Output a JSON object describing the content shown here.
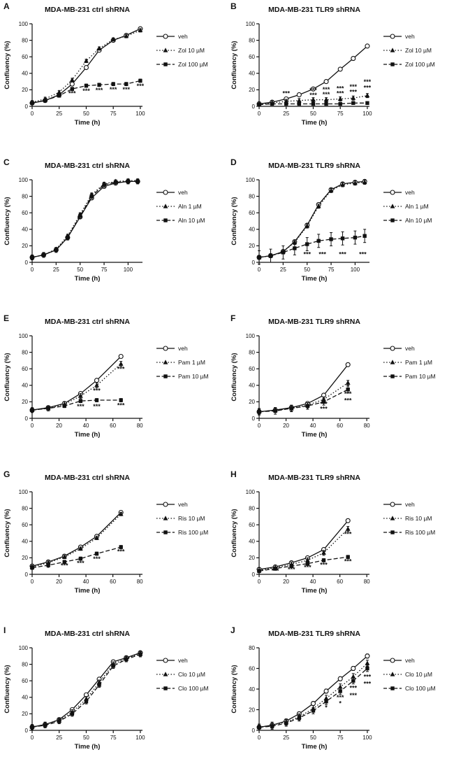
{
  "chart_data": [
    {
      "panel": "A",
      "type": "line",
      "title": "MDA-MB-231 ctrl shRNA",
      "xlabel": "Time (h)",
      "ylabel": "Confluency (%)",
      "xlim": [
        0,
        102
      ],
      "xticks": [
        0,
        25,
        50,
        75,
        100
      ],
      "ylim": [
        0,
        100
      ],
      "yticks": [
        0,
        20,
        40,
        60,
        80,
        100
      ],
      "grid": false,
      "legend_position": "right",
      "x": [
        0,
        12,
        25,
        37,
        50,
        62,
        75,
        87,
        100
      ],
      "series": [
        {
          "name": "veh",
          "marker": "circle-open",
          "line": "solid",
          "err": 2,
          "values": [
            4,
            7,
            14,
            27,
            47,
            68,
            80,
            86,
            94
          ]
        },
        {
          "name": "Zol 10 µM",
          "marker": "triangle",
          "line": "dotted",
          "err": 2,
          "values": [
            5,
            9,
            17,
            32,
            55,
            70,
            81,
            85,
            92
          ]
        },
        {
          "name": "Zol 100 µM",
          "marker": "square",
          "line": "dashed",
          "err": 2,
          "values": [
            4,
            7,
            13,
            21,
            25,
            26,
            27,
            27,
            31
          ]
        }
      ],
      "significance": [
        {
          "x": 37,
          "y": 13,
          "label": "***"
        },
        {
          "x": 50,
          "y": 16,
          "label": "***"
        },
        {
          "x": 62,
          "y": 17,
          "label": "***"
        },
        {
          "x": 75,
          "y": 18,
          "label": "***"
        },
        {
          "x": 87,
          "y": 18,
          "label": "***"
        },
        {
          "x": 100,
          "y": 22,
          "label": "***"
        }
      ]
    },
    {
      "panel": "B",
      "type": "line",
      "title": "MDA-MB-231 TLR9 shRNA",
      "xlabel": "Time (h)",
      "ylabel": "Confluency (%)",
      "xlim": [
        0,
        102
      ],
      "xticks": [
        0,
        25,
        50,
        75,
        100
      ],
      "ylim": [
        0,
        100
      ],
      "yticks": [
        0,
        20,
        40,
        60,
        80,
        100
      ],
      "grid": false,
      "legend_position": "right",
      "x": [
        0,
        12,
        25,
        37,
        50,
        62,
        75,
        87,
        100
      ],
      "series": [
        {
          "name": "veh",
          "marker": "circle-open",
          "line": "solid",
          "err": 2,
          "values": [
            3,
            5,
            9,
            14,
            21,
            30,
            45,
            58,
            73
          ]
        },
        {
          "name": "Zol 10 µM",
          "marker": "triangle",
          "line": "dotted",
          "err": 2.5,
          "values": [
            3,
            4,
            6,
            7,
            8,
            8,
            9,
            10,
            13
          ]
        },
        {
          "name": "Zol 100 µM",
          "marker": "square",
          "line": "dashed",
          "err": 1,
          "values": [
            2,
            3,
            3,
            3,
            3,
            3,
            3,
            4,
            4
          ]
        }
      ],
      "significance": [
        {
          "x": 25,
          "y": 13,
          "label": "***"
        },
        {
          "x": 50,
          "y": 17,
          "label": "***"
        },
        {
          "x": 50,
          "y": 11,
          "label": "***"
        },
        {
          "x": 62,
          "y": 18,
          "label": "***"
        },
        {
          "x": 62,
          "y": 12,
          "label": "***"
        },
        {
          "x": 75,
          "y": 19,
          "label": "***"
        },
        {
          "x": 75,
          "y": 13,
          "label": "***"
        },
        {
          "x": 87,
          "y": 21,
          "label": "***"
        },
        {
          "x": 87,
          "y": 15,
          "label": "***"
        },
        {
          "x": 100,
          "y": 27,
          "label": "***"
        },
        {
          "x": 100,
          "y": 20,
          "label": "***"
        }
      ]
    },
    {
      "panel": "C",
      "type": "line",
      "title": "MDA-MB-231 ctrl shRNA",
      "xlabel": "Time (h)",
      "ylabel": "Confluency (%)",
      "xlim": [
        0,
        115
      ],
      "xticks": [
        0,
        25,
        50,
        75,
        100
      ],
      "ylim": [
        0,
        100
      ],
      "yticks": [
        0,
        20,
        40,
        60,
        80,
        100
      ],
      "grid": false,
      "legend_position": "right",
      "x": [
        0,
        12,
        25,
        37,
        50,
        62,
        75,
        87,
        100,
        110
      ],
      "series": [
        {
          "name": "veh",
          "marker": "circle-open",
          "line": "solid",
          "err": 2,
          "values": [
            6,
            9,
            15,
            30,
            55,
            78,
            92,
            96,
            98,
            98
          ]
        },
        {
          "name": "Aln 1 µM",
          "marker": "triangle",
          "line": "dotted",
          "err": 2,
          "values": [
            6,
            9,
            16,
            32,
            58,
            82,
            95,
            98,
            99,
            99
          ]
        },
        {
          "name": "Aln 10 µM",
          "marker": "square",
          "line": "dashed",
          "err": 3,
          "values": [
            6,
            9,
            15,
            30,
            56,
            80,
            94,
            97,
            98,
            98
          ]
        }
      ],
      "significance": []
    },
    {
      "panel": "D",
      "type": "line",
      "title": "MDA-MB-231 TLR9 shRNA",
      "xlabel": "Time (h)",
      "ylabel": "Confluency (%)",
      "xlim": [
        0,
        115
      ],
      "xticks": [
        0,
        25,
        50,
        75,
        100
      ],
      "ylim": [
        0,
        100
      ],
      "yticks": [
        0,
        20,
        40,
        60,
        80,
        100
      ],
      "grid": false,
      "legend_position": "right",
      "x": [
        0,
        12,
        25,
        37,
        50,
        62,
        75,
        87,
        100,
        110
      ],
      "series": [
        {
          "name": "veh",
          "marker": "circle-open",
          "line": "solid",
          "err": 2,
          "values": [
            6,
            8,
            13,
            25,
            45,
            70,
            88,
            95,
            97,
            98
          ]
        },
        {
          "name": "Aln 1 µM",
          "marker": "triangle",
          "line": "dotted",
          "err": 2.5,
          "values": [
            6,
            8,
            13,
            24,
            44,
            68,
            87,
            94,
            96,
            97
          ]
        },
        {
          "name": "Aln 10 µM",
          "marker": "square",
          "line": "dashed",
          "err": 8,
          "values": [
            6,
            8,
            12,
            17,
            22,
            26,
            28,
            29,
            30,
            32
          ]
        }
      ],
      "significance": [
        {
          "x": 50,
          "y": 7,
          "label": "***"
        },
        {
          "x": 66,
          "y": 7,
          "label": "***"
        },
        {
          "x": 87,
          "y": 7,
          "label": "***"
        },
        {
          "x": 108,
          "y": 7,
          "label": "***"
        }
      ]
    },
    {
      "panel": "E",
      "type": "line",
      "title": "MDA-MB-231 ctrl shRNA",
      "xlabel": "Time (h)",
      "ylabel": "Confluency (%)",
      "xlim": [
        0,
        82
      ],
      "xticks": [
        0,
        20,
        40,
        60,
        80
      ],
      "ylim": [
        0,
        100
      ],
      "yticks": [
        0,
        20,
        40,
        60,
        80,
        100
      ],
      "grid": false,
      "legend_position": "right",
      "x": [
        0,
        12,
        24,
        36,
        48,
        66
      ],
      "series": [
        {
          "name": "veh",
          "marker": "circle-open",
          "line": "solid",
          "err": 2,
          "values": [
            10,
            13,
            18,
            30,
            46,
            75
          ]
        },
        {
          "name": "Pam 1 µM",
          "marker": "triangle",
          "line": "dotted",
          "err": 3,
          "values": [
            10,
            12,
            17,
            27,
            40,
            66
          ]
        },
        {
          "name": "Pam 10 µM",
          "marker": "square",
          "line": "dashed",
          "err": 2,
          "values": [
            10,
            12,
            15,
            21,
            22,
            22
          ]
        }
      ],
      "significance": [
        {
          "x": 48,
          "y": 31,
          "label": "***"
        },
        {
          "x": 66,
          "y": 57,
          "label": "***"
        },
        {
          "x": 36,
          "y": 12,
          "label": "***"
        },
        {
          "x": 48,
          "y": 12,
          "label": "***"
        },
        {
          "x": 66,
          "y": 13,
          "label": "***"
        }
      ]
    },
    {
      "panel": "F",
      "type": "line",
      "title": "MDA-MB-231 TLR9 shRNA",
      "xlabel": "Time (h)",
      "ylabel": "Confluency (%)",
      "xlim": [
        0,
        82
      ],
      "xticks": [
        0,
        20,
        40,
        60,
        80
      ],
      "ylim": [
        0,
        100
      ],
      "yticks": [
        0,
        20,
        40,
        60,
        80,
        100
      ],
      "grid": false,
      "legend_position": "right",
      "x": [
        0,
        12,
        24,
        36,
        48,
        66
      ],
      "series": [
        {
          "name": "veh",
          "marker": "circle-open",
          "line": "solid",
          "err": 2,
          "values": [
            8,
            10,
            13,
            18,
            28,
            65
          ]
        },
        {
          "name": "Pam 1 µM",
          "marker": "triangle",
          "line": "dotted",
          "err": 3,
          "values": [
            8,
            10,
            12,
            16,
            23,
            43
          ]
        },
        {
          "name": "Pam 10 µM",
          "marker": "square",
          "line": "dashed",
          "err": 4,
          "values": [
            8,
            9,
            12,
            15,
            20,
            35
          ]
        }
      ],
      "significance": [
        {
          "x": 36,
          "y": 9,
          "label": "*"
        },
        {
          "x": 48,
          "y": 15,
          "label": "***"
        },
        {
          "x": 48,
          "y": 9,
          "label": "***"
        },
        {
          "x": 66,
          "y": 27,
          "label": "***"
        },
        {
          "x": 66,
          "y": 19,
          "label": "***"
        }
      ]
    },
    {
      "panel": "G",
      "type": "line",
      "title": "MDA-MB-231 ctrl shRNA",
      "xlabel": "Time (h)",
      "ylabel": "Confluency (%)",
      "xlim": [
        0,
        82
      ],
      "xticks": [
        0,
        20,
        40,
        60,
        80
      ],
      "ylim": [
        0,
        100
      ],
      "yticks": [
        0,
        20,
        40,
        60,
        80,
        100
      ],
      "grid": false,
      "legend_position": "right",
      "x": [
        0,
        12,
        24,
        36,
        48,
        66
      ],
      "series": [
        {
          "name": "veh",
          "marker": "circle-open",
          "line": "solid",
          "err": 2,
          "values": [
            10,
            15,
            22,
            33,
            46,
            75
          ]
        },
        {
          "name": "Ris 10 µM",
          "marker": "triangle",
          "line": "dotted",
          "err": 2,
          "values": [
            9,
            14,
            21,
            31,
            44,
            73
          ]
        },
        {
          "name": "Ris 100 µM",
          "marker": "square",
          "line": "dashed",
          "err": 2,
          "values": [
            8,
            11,
            15,
            19,
            25,
            33
          ]
        }
      ],
      "significance": [
        {
          "x": 12,
          "y": 5,
          "label": "*"
        },
        {
          "x": 24,
          "y": 8,
          "label": "***"
        },
        {
          "x": 36,
          "y": 11,
          "label": "***"
        },
        {
          "x": 48,
          "y": 16,
          "label": "***"
        },
        {
          "x": 66,
          "y": 25,
          "label": "***"
        }
      ]
    },
    {
      "panel": "H",
      "type": "line",
      "title": "MDA-MB-231 TLR9 shRNA",
      "xlabel": "Time (h)",
      "ylabel": "Confluency (%)",
      "xlim": [
        0,
        82
      ],
      "xticks": [
        0,
        20,
        40,
        60,
        80
      ],
      "ylim": [
        0,
        100
      ],
      "yticks": [
        0,
        20,
        40,
        60,
        80,
        100
      ],
      "grid": false,
      "legend_position": "right",
      "x": [
        0,
        12,
        24,
        36,
        48,
        66
      ],
      "series": [
        {
          "name": "veh",
          "marker": "circle-open",
          "line": "solid",
          "err": 2,
          "values": [
            6,
            9,
            14,
            20,
            30,
            65
          ]
        },
        {
          "name": "Ris 10 µM",
          "marker": "triangle",
          "line": "dotted",
          "err": 3,
          "values": [
            5,
            8,
            12,
            17,
            26,
            55
          ]
        },
        {
          "name": "Ris 100 µM",
          "marker": "square",
          "line": "dashed",
          "err": 2,
          "values": [
            4,
            7,
            10,
            13,
            17,
            21
          ]
        }
      ],
      "significance": [
        {
          "x": 66,
          "y": 46,
          "label": "***"
        },
        {
          "x": 12,
          "y": 1.5,
          "label": "***"
        },
        {
          "x": 24,
          "y": 3.5,
          "label": "***"
        },
        {
          "x": 36,
          "y": 6,
          "label": "***"
        },
        {
          "x": 48,
          "y": 9,
          "label": "***"
        },
        {
          "x": 66,
          "y": 13,
          "label": "***"
        }
      ]
    },
    {
      "panel": "I",
      "type": "line",
      "title": "MDA-MB-231 ctrl shRNA",
      "xlabel": "Time (h)",
      "ylabel": "Confluency (%)",
      "xlim": [
        0,
        102
      ],
      "xticks": [
        0,
        25,
        50,
        75,
        100
      ],
      "ylim": [
        0,
        100
      ],
      "yticks": [
        0,
        20,
        40,
        60,
        80,
        100
      ],
      "grid": false,
      "legend_position": "right",
      "x": [
        0,
        12,
        25,
        37,
        50,
        62,
        75,
        87,
        100
      ],
      "series": [
        {
          "name": "veh",
          "marker": "circle-open",
          "line": "solid",
          "err": 2,
          "values": [
            4,
            7,
            13,
            25,
            43,
            62,
            83,
            88,
            94
          ]
        },
        {
          "name": "Clo 10 µM",
          "marker": "triangle",
          "line": "dotted",
          "err": 3,
          "values": [
            4,
            7,
            12,
            22,
            38,
            58,
            80,
            87,
            93
          ]
        },
        {
          "name": "Clo 100 µM",
          "marker": "square",
          "line": "dashed",
          "err": 3,
          "values": [
            4,
            6,
            11,
            20,
            35,
            55,
            78,
            86,
            92
          ]
        }
      ],
      "significance": []
    },
    {
      "panel": "J",
      "type": "line",
      "title": "MDA-MB-231 TLR9 shRNA",
      "xlabel": "Time (h)",
      "ylabel": "Confluency (%)",
      "xlim": [
        0,
        102
      ],
      "xticks": [
        0,
        25,
        50,
        75,
        100
      ],
      "ylim": [
        0,
        80
      ],
      "yticks": [
        0,
        20,
        40,
        60,
        80
      ],
      "grid": false,
      "legend_position": "right",
      "x": [
        0,
        12,
        25,
        37,
        50,
        62,
        75,
        87,
        100
      ],
      "series": [
        {
          "name": "veh",
          "marker": "circle-open",
          "line": "solid",
          "err": 2,
          "values": [
            3,
            5,
            9,
            16,
            26,
            38,
            50,
            60,
            72
          ]
        },
        {
          "name": "Clo 10 µM",
          "marker": "triangle",
          "line": "dotted",
          "err": 3,
          "values": [
            3,
            5,
            8,
            13,
            21,
            31,
            42,
            52,
            65
          ]
        },
        {
          "name": "Clo 100 µM",
          "marker": "square",
          "line": "dashed",
          "err": 3,
          "values": [
            3,
            4,
            7,
            12,
            19,
            28,
            38,
            48,
            60
          ]
        }
      ],
      "significance": [
        {
          "x": 62,
          "y": 20,
          "label": "*"
        },
        {
          "x": 75,
          "y": 30,
          "label": "***"
        },
        {
          "x": 75,
          "y": 24,
          "label": "*"
        },
        {
          "x": 87,
          "y": 39,
          "label": "***"
        },
        {
          "x": 87,
          "y": 32,
          "label": "***"
        },
        {
          "x": 100,
          "y": 50,
          "label": "***"
        },
        {
          "x": 100,
          "y": 43,
          "label": "***"
        }
      ]
    }
  ]
}
